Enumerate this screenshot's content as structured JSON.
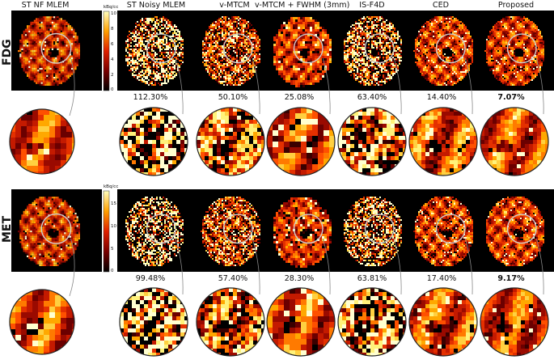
{
  "columns": [
    "ST NF MLEM",
    "ST Noisy MLEM",
    "v-MTCM",
    "v-MTCM + FWHM (3mm)",
    "IS-F4D",
    "CED",
    "Proposed"
  ],
  "rows": [
    {
      "label": "FDG",
      "errors": [
        "112.30%",
        "50.10%",
        "25.08%",
        "63.40%",
        "14.40%",
        "7.07%"
      ],
      "colorbar": {
        "unit": "kBq/cc",
        "ticks": [
          "10",
          "8",
          "6",
          "4",
          "2",
          "0"
        ]
      }
    },
    {
      "label": "MET",
      "errors": [
        "99.48%",
        "57.40%",
        "28.30%",
        "63.81%",
        "17.40%",
        "9.17%"
      ],
      "colorbar": {
        "unit": "kBq/cc",
        "ticks": [
          "15",
          "10",
          "5",
          "0"
        ]
      }
    }
  ],
  "colors": {
    "background": "#000000",
    "lowActivity": "#6b0000",
    "midActivity": "#ff3b00",
    "highActivity": "#fff27a"
  }
}
